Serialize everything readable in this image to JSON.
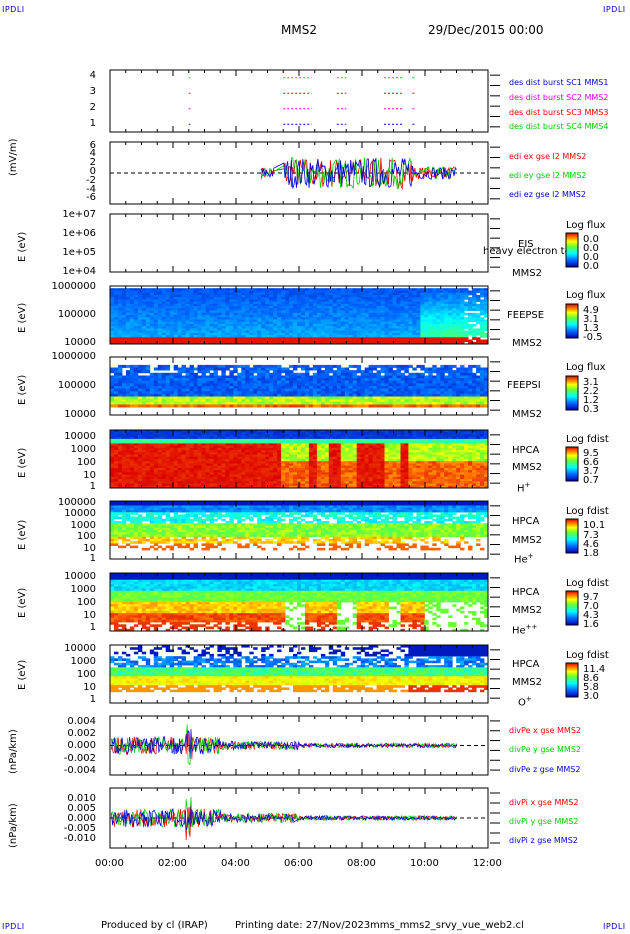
{
  "header": {
    "corner_label": "IPDLI",
    "spacecraft": "MMS2",
    "date": "29/Dec/2015 00:00"
  },
  "footer": {
    "producer": "Produced by cl (IRAP)",
    "printing_date": "Printing date: 27/Nov/2023",
    "filename": "mms_mms2_srvy_vue_web2.cl"
  },
  "colors": {
    "blue": "#0000dd",
    "red": "#ee0000",
    "green": "#00cc00",
    "magenta": "#dd00dd"
  },
  "chart_data": [
    {
      "type": "scatter",
      "panel": "burst-availability",
      "ylim": [
        0.5,
        4.5
      ],
      "y_ticks": [
        "1",
        "2",
        "3",
        "4"
      ],
      "series": [
        {
          "name": "des dist burst SC1 MMS1",
          "color": "#0000dd",
          "level": 1
        },
        {
          "name": "des dist burst SC2 MMS2",
          "color": "#dd00dd",
          "level": 2
        },
        {
          "name": "des dist burst SC3 MMS3",
          "color": "#ee0000",
          "level": 3
        },
        {
          "name": "des dist burst SC4 MMS4",
          "color": "#00cc00",
          "level": 4
        }
      ],
      "intervals_hours": [
        [
          2.5,
          2.55
        ],
        [
          5.5,
          6.4
        ],
        [
          7.2,
          7.5
        ],
        [
          8.7,
          9.3
        ],
        [
          9.6,
          9.7
        ]
      ]
    },
    {
      "type": "line",
      "panel": "edi-electric-field",
      "ylabel": "(mV/m)",
      "ylim": [
        -6,
        6
      ],
      "y_ticks": [
        "6",
        "4",
        "2",
        "0",
        "-2",
        "-4",
        "-6"
      ],
      "series": [
        {
          "name": "edi ex gse l2 MMS2",
          "color": "#ee0000"
        },
        {
          "name": "edi ey gse l2 MMS2",
          "color": "#00cc00"
        },
        {
          "name": "edi ez gse l2 MMS2",
          "color": "#0000dd"
        }
      ],
      "x_range_hours": [
        4.8,
        11.0
      ]
    },
    {
      "type": "heatmap",
      "panel": "eis",
      "ylabel": "E (eV)",
      "y_ticks": [
        "1e+07",
        "1e+06",
        "1e+05",
        "1e+04"
      ],
      "instrument": "EIS",
      "species": "heavy electron to",
      "spacecraft": "MMS2",
      "colorbar_label": "Log flux",
      "colorbar_ticks": [
        "0.0",
        "0.0",
        "0.0",
        "0.0"
      ]
    },
    {
      "type": "heatmap",
      "panel": "feepse",
      "ylabel": "E (eV)",
      "y_ticks": [
        "1000000",
        "100000",
        "10000"
      ],
      "instrument": "FEEPSE",
      "spacecraft": "MMS2",
      "colorbar_label": "Log flux",
      "colorbar_ticks": [
        "4.9",
        "3.1",
        "1.3",
        "-0.5"
      ]
    },
    {
      "type": "heatmap",
      "panel": "feepsi",
      "ylabel": "E (eV)",
      "y_ticks": [
        "1000000",
        "100000",
        "10000"
      ],
      "instrument": "FEEPSI",
      "spacecraft": "MMS2",
      "colorbar_label": "Log flux",
      "colorbar_ticks": [
        "3.1",
        "2.2",
        "1.2",
        "0.3"
      ]
    },
    {
      "type": "heatmap",
      "panel": "hpca-h",
      "ylabel": "E (eV)",
      "y_ticks": [
        "10000",
        "1000",
        "100",
        "10",
        "1"
      ],
      "instrument": "HPCA",
      "spacecraft": "MMS2",
      "species": "H",
      "species_charge": "+",
      "colorbar_label": "Log fdist",
      "colorbar_ticks": [
        "9.5",
        "6.6",
        "3.7",
        "0.7"
      ]
    },
    {
      "type": "heatmap",
      "panel": "hpca-he",
      "ylabel": "E (eV)",
      "y_ticks": [
        "100000",
        "10000",
        "1000",
        "100",
        "10",
        "1"
      ],
      "instrument": "HPCA",
      "spacecraft": "MMS2",
      "species": "He",
      "species_charge": "+",
      "colorbar_label": "Log fdist",
      "colorbar_ticks": [
        "10.1",
        "7.3",
        "4.6",
        "1.8"
      ]
    },
    {
      "type": "heatmap",
      "panel": "hpca-hepp",
      "ylabel": "E (eV)",
      "y_ticks": [
        "10000",
        "1000",
        "100",
        "10",
        "1"
      ],
      "instrument": "HPCA",
      "spacecraft": "MMS2",
      "species": "He",
      "species_charge": "++",
      "colorbar_label": "Log fdist",
      "colorbar_ticks": [
        "9.7",
        "7.0",
        "4.3",
        "1.6"
      ]
    },
    {
      "type": "heatmap",
      "panel": "hpca-o",
      "ylabel": "E (eV)",
      "y_ticks": [
        "10000",
        "1000",
        "100",
        "10",
        "1"
      ],
      "instrument": "HPCA",
      "spacecraft": "MMS2",
      "species": "O",
      "species_charge": "+",
      "colorbar_label": "Log fdist",
      "colorbar_ticks": [
        "11.4",
        "8.6",
        "5.8",
        "3.0"
      ]
    },
    {
      "type": "line",
      "panel": "divpe",
      "ylabel": "(nPa/km)",
      "ylim": [
        -0.005,
        0.005
      ],
      "y_ticks": [
        "0.004",
        "0.002",
        "0.000",
        "-0.002",
        "-0.004"
      ],
      "series": [
        {
          "name": "divPe x gse MMS2",
          "color": "#ee0000"
        },
        {
          "name": "divPe y gse MMS2",
          "color": "#00cc00"
        },
        {
          "name": "divPe z gse MMS2",
          "color": "#0000dd"
        }
      ]
    },
    {
      "type": "line",
      "panel": "divpi",
      "ylabel": "(nPa/km)",
      "ylim": [
        -0.013,
        0.013
      ],
      "y_ticks": [
        "0.010",
        "0.005",
        "0.000",
        "-0.005",
        "-0.010"
      ],
      "series": [
        {
          "name": "divPi x gse MMS2",
          "color": "#ee0000"
        },
        {
          "name": "divPi y gse MMS2",
          "color": "#00cc00"
        },
        {
          "name": "divPi z gse MMS2",
          "color": "#0000dd"
        }
      ]
    }
  ],
  "x_axis": {
    "range_hours": [
      0,
      12
    ],
    "ticks": [
      "00:00",
      "02:00",
      "04:00",
      "06:00",
      "08:00",
      "10:00",
      "12:00"
    ]
  }
}
